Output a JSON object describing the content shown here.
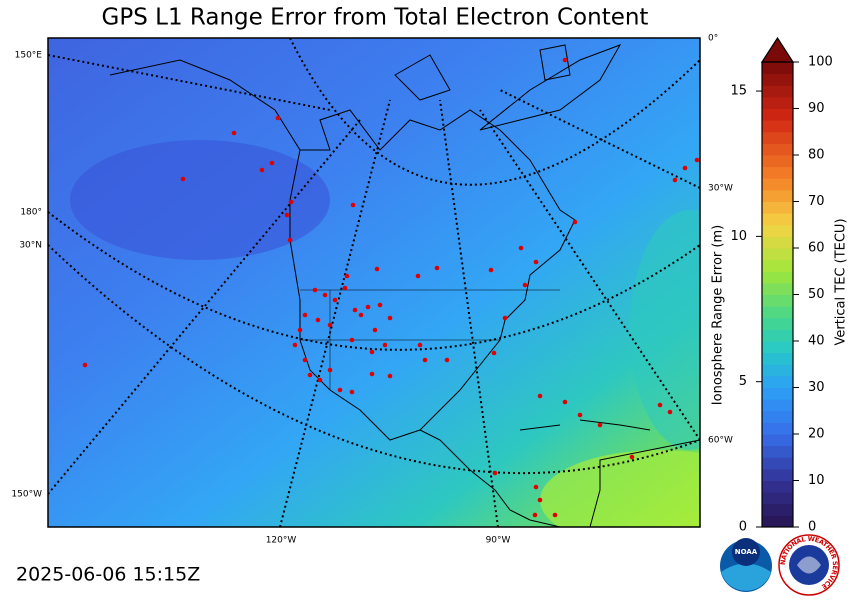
{
  "title": "GPS L1 Range Error from Total Electron Content",
  "timestamp": "2025-06-06 15:15Z",
  "graticule_labels": {
    "left": [
      "150°E",
      "180°",
      "30°N",
      "150°W"
    ],
    "right": [
      "0°",
      "30°W",
      "60°W"
    ],
    "bottom": [
      "120°W",
      "90°W"
    ]
  },
  "colorbar": {
    "left_axis_label": "Ionosphere Range Error (m)",
    "left_lim": [
      0,
      16
    ],
    "left_ticks": [
      0,
      5,
      10,
      15
    ],
    "right_axis_label": "Vertical TEC (TECU)",
    "right_lim": [
      0,
      100
    ],
    "right_ticks": [
      0,
      10,
      20,
      30,
      40,
      50,
      60,
      70,
      80,
      90,
      100
    ]
  },
  "logos": {
    "noaa": "NOAA",
    "nws": "NATIONAL WEATHER SERVICE"
  }
}
